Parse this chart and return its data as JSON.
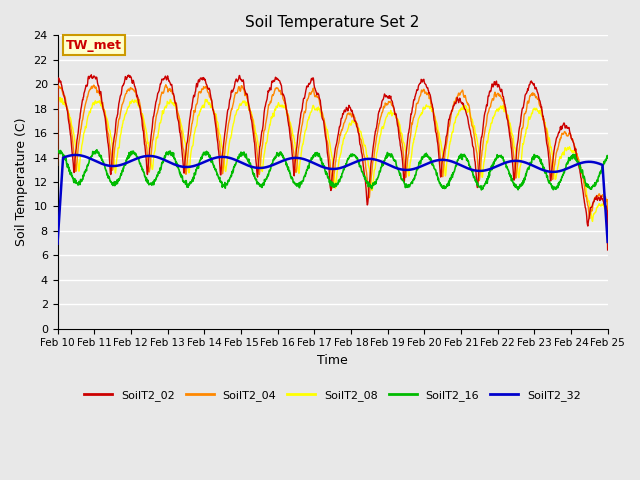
{
  "title": "Soil Temperature Set 2",
  "xlabel": "Time",
  "ylabel": "Soil Temperature (C)",
  "ylim": [
    0,
    24
  ],
  "yticks": [
    0,
    2,
    4,
    6,
    8,
    10,
    12,
    14,
    16,
    18,
    20,
    22,
    24
  ],
  "bg_color": "#e8e8e8",
  "plot_bg_color": "#e8e8e8",
  "grid_color": "white",
  "annotation_text": "TW_met",
  "annotation_bg": "#ffffcc",
  "annotation_border": "#cc9900",
  "series_colors": [
    "#cc0000",
    "#ff8800",
    "#ffff00",
    "#00bb00",
    "#0000cc"
  ],
  "series_names": [
    "SoilT2_02",
    "SoilT2_04",
    "SoilT2_08",
    "SoilT2_16",
    "SoilT2_32"
  ],
  "n_points": 1500,
  "xtick_labels": [
    "Feb 10",
    "Feb 11",
    "Feb 12",
    "Feb 13",
    "Feb 14",
    "Feb 15",
    "Feb 16",
    "Feb 17",
    "Feb 18",
    "Feb 19",
    "Feb 20",
    "Feb 21",
    "Feb 22",
    "Feb 23",
    "Feb 24",
    "Feb 25"
  ]
}
